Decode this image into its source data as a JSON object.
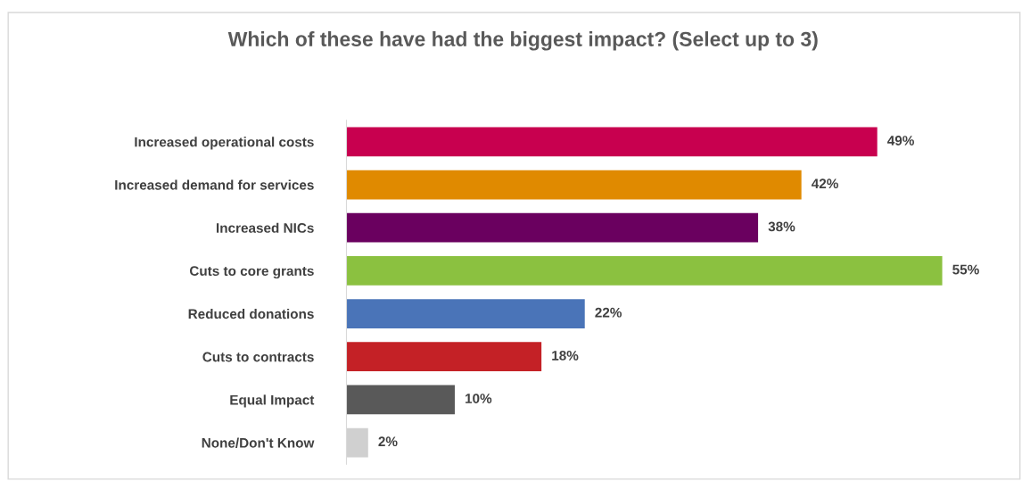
{
  "chart_data": {
    "type": "bar",
    "orientation": "horizontal",
    "title": "Which of these have had the biggest impact? (Select up to 3)",
    "categories": [
      "Increased operational costs",
      "Increased demand for services",
      "Increased NICs",
      "Cuts to core grants",
      "Reduced donations",
      "Cuts to contracts",
      "Equal Impact",
      "None/Don't Know"
    ],
    "values": [
      49,
      42,
      38,
      55,
      22,
      18,
      10,
      2
    ],
    "colors": [
      "#c8004f",
      "#e08a00",
      "#6a005f",
      "#8bc140",
      "#4a74b8",
      "#c42126",
      "#595959",
      "#d0d0d0"
    ],
    "value_labels": [
      "49%",
      "42%",
      "38%",
      "55%",
      "22%",
      "18%",
      "10%",
      "2%"
    ]
  }
}
